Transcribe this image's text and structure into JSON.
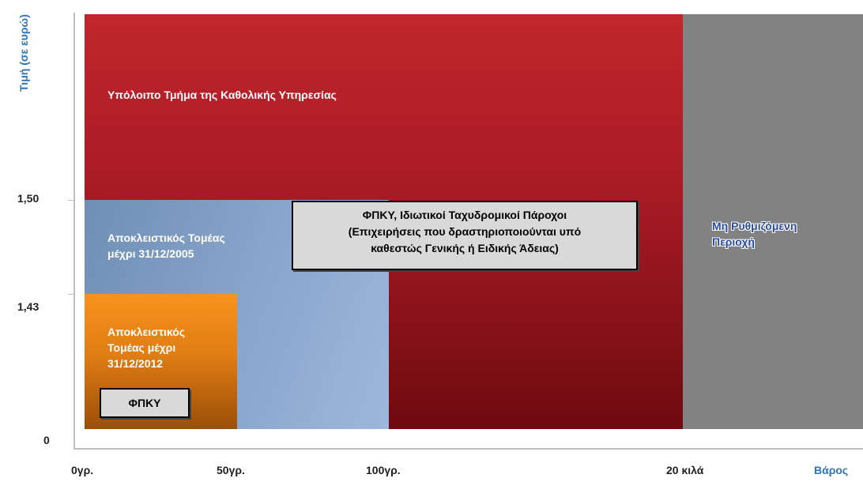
{
  "chart_data": {
    "type": "area",
    "ylabel": "Τιμή (σε ευρώ)",
    "xlabel": "Βάρος",
    "y_ticks": [
      "1,50",
      "1,43",
      "0"
    ],
    "x_ticks": [
      "0γρ.",
      "50γρ.",
      "100γρ.",
      "20 κιλά"
    ],
    "regions": [
      {
        "name": "Υπόλοιπο Τμήμα της Καθολικής Υπηρεσίας",
        "color": "#b3202a",
        "x_range": [
          "0γρ.",
          "20 κιλά"
        ]
      },
      {
        "name": "Μη Ρυθμιζόμενη Περιοχή",
        "color": "#828282",
        "x_range": [
          "20 κιλά",
          "Βάρος"
        ]
      },
      {
        "name": "Αποκλειστικός Τομέας μέχρι 31/12/2005",
        "color": "#8aa6cc",
        "x_range": [
          "0γρ.",
          "100γρ."
        ],
        "y_max": "1,50"
      },
      {
        "name": "Αποκλειστικός Τομέας μέχρι 31/12/2012",
        "color": "#f7931d",
        "x_range": [
          "0γρ.",
          "50γρ."
        ],
        "y_max": "1,43"
      }
    ]
  },
  "labels": {
    "red_region": "Υπόλοιπο Τμήμα της Καθολικής Υπηρεσίας",
    "grey_region_line1": "Μη Ρυθμιζόμενη",
    "grey_region_line2": "Περιοχή",
    "blue_region_line1": "Αποκλειστικός Τομέας",
    "blue_region_line2": "μέχρι 31/12/2005",
    "orange_region_line1": "Αποκλειστικός",
    "orange_region_line2": "Τομέας μέχρι",
    "orange_region_line3": "31/12/2012"
  },
  "boxes": {
    "main_line1": "ΦΠΚΥ, Ιδιωτικοί Ταχυδρομικοί Πάροχοι",
    "main_line2": "(Επιχειρήσεις που δραστηριοποιούνται υπό",
    "main_line3": "καθεστώς Γενικής ή Ειδικής Άδειας)",
    "small": "ΦΠΚΥ"
  }
}
